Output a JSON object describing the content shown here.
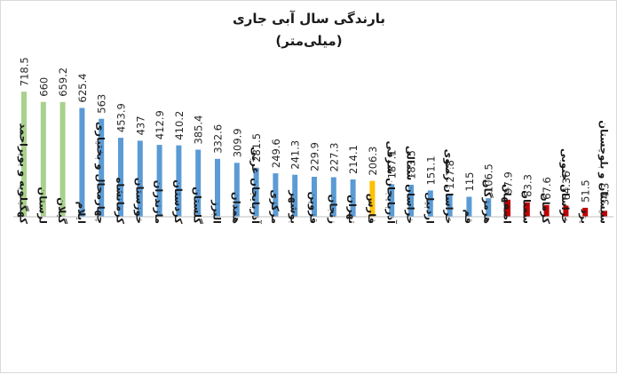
{
  "chart_data": {
    "type": "bar",
    "title": "بارندگی سال آبی جاری",
    "subtitle": "(میلی‌متر)",
    "xlabel": "",
    "ylabel": "",
    "ylim": [
      0,
      740
    ],
    "grid": false,
    "legend": "none",
    "categories": [
      "کهگیلویه و بویراحمد",
      "لرستان",
      "گیلان",
      "ایلام",
      "چهارمحال و بختیاری",
      "کرمانشاه",
      "خوزستان",
      "مازندران",
      "کردستان",
      "گلستان",
      "البرز",
      "همدان",
      "آذربایجان غربی",
      "مرکزی",
      "بوشهر",
      "قزوین",
      "زنجان",
      "تهران",
      "فارس",
      "آذربایجان شرقی",
      "خراسان شمالی",
      "اردبیل",
      "خراسان رضوی",
      "قم",
      "هرمزگان",
      "اصفهان",
      "سمنان",
      "کرمان",
      "خراسان جنوبی",
      "یزد",
      "سیستان و بلوچستان"
    ],
    "values": [
      718.5,
      660,
      659.2,
      625.4,
      563,
      453.9,
      437,
      412.9,
      410.2,
      385.4,
      332.6,
      309.9,
      281.5,
      249.6,
      241.3,
      229.9,
      227.3,
      214.1,
      206.3,
      187.1,
      183.5,
      151.1,
      127.8,
      115,
      106.5,
      97.9,
      83.3,
      67.6,
      64.36,
      51.5,
      34.3
    ],
    "value_labels": [
      "718.5",
      "660",
      "659.2",
      "625.4",
      "563",
      "453.9",
      "437",
      "412.9",
      "410.2",
      "385.4",
      "332.6",
      "309.9",
      "281.5",
      "249.6",
      "241.3",
      "229.9",
      "227.3",
      "214.1",
      "206.3",
      "187.1",
      "183.5",
      "151.1",
      "127.8",
      "115",
      "106.5",
      "97.9",
      "83.3",
      "67.6",
      "64.36",
      "51.5",
      "34.3"
    ],
    "bar_colors": [
      "green",
      "green",
      "green",
      "blue",
      "blue",
      "blue",
      "blue",
      "blue",
      "blue",
      "blue",
      "blue",
      "blue",
      "blue",
      "blue",
      "blue",
      "blue",
      "blue",
      "blue",
      "yellow",
      "blue",
      "blue",
      "blue",
      "blue",
      "blue",
      "blue",
      "red",
      "red",
      "red",
      "red",
      "red",
      "red"
    ],
    "colors": {
      "green": "#a9d18e",
      "blue": "#5b9bd5",
      "yellow": "#ffc000",
      "red": "#c00000",
      "axis": "#bfbfbf"
    }
  }
}
